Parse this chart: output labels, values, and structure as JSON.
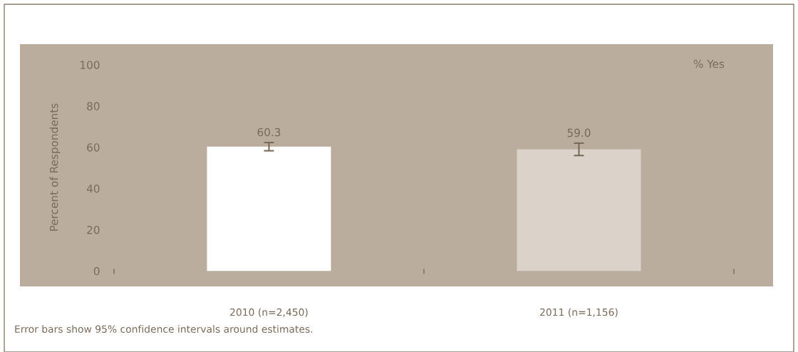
{
  "chart_data": {
    "type": "bar",
    "ylabel": "Percent of Respondents",
    "legend_title": "% Yes",
    "categories": [
      "2010 (n=2,450)",
      "2011 (n=1,156)"
    ],
    "values": [
      60.3,
      59.0
    ],
    "colors": [
      "#ffffff",
      "#dbd3c9"
    ],
    "errors": [
      2,
      3
    ],
    "value_labels": [
      "60.3",
      "59.0"
    ],
    "ylim": [
      -7.5,
      110
    ],
    "yticks": [
      0,
      20,
      40,
      60,
      80,
      100
    ],
    "grid": false,
    "annotations": [
      "Error bars show 95% confidence intervals around estimates."
    ]
  }
}
